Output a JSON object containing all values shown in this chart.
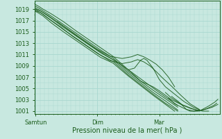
{
  "background_color": "#c8e8e0",
  "grid_color": "#a8d8d0",
  "line_color": "#1a5c1a",
  "ylim": [
    1000.5,
    1020.5
  ],
  "yticks": [
    1001,
    1003,
    1005,
    1007,
    1009,
    1011,
    1013,
    1015,
    1017,
    1019
  ],
  "xlabel": "Pression niveau de la mer( hPa )",
  "xtick_labels": [
    "Samtun",
    "Dim",
    "Mar"
  ],
  "xtick_positions": [
    0.0,
    1.0,
    2.0
  ],
  "text_color": "#1a5c1a",
  "lines": [
    {
      "x": [
        0.0,
        0.05,
        0.12,
        0.25,
        0.45,
        0.65,
        0.85,
        1.05,
        1.25,
        1.5,
        1.7,
        1.9,
        2.1,
        2.3
      ],
      "y": [
        1019.8,
        1019.5,
        1019.0,
        1018.2,
        1016.8,
        1015.2,
        1013.7,
        1012.2,
        1010.7,
        1008.3,
        1006.7,
        1005.1,
        1003.5,
        1002.0
      ]
    },
    {
      "x": [
        0.0,
        0.05,
        0.12,
        0.25,
        0.45,
        0.65,
        0.85,
        1.05,
        1.25,
        1.5,
        1.7,
        1.9,
        2.1,
        2.3
      ],
      "y": [
        1019.5,
        1019.2,
        1018.7,
        1017.8,
        1016.3,
        1014.8,
        1013.3,
        1011.8,
        1010.4,
        1008.0,
        1006.3,
        1004.7,
        1003.2,
        1001.7
      ]
    },
    {
      "x": [
        0.0,
        0.05,
        0.12,
        0.25,
        0.45,
        0.65,
        0.85,
        1.05,
        1.25,
        1.5,
        1.7,
        1.9,
        2.1,
        2.3
      ],
      "y": [
        1019.2,
        1018.9,
        1018.4,
        1017.4,
        1015.8,
        1014.3,
        1012.8,
        1011.3,
        1010.1,
        1007.7,
        1006.0,
        1004.3,
        1002.8,
        1001.2
      ]
    },
    {
      "x": [
        0.0,
        0.05,
        0.12,
        0.25,
        0.45,
        0.65,
        0.85,
        1.05,
        1.25,
        1.5,
        1.7,
        1.9,
        2.1,
        2.3
      ],
      "y": [
        1018.9,
        1018.6,
        1018.1,
        1017.0,
        1015.4,
        1013.9,
        1012.4,
        1010.9,
        1009.8,
        1007.4,
        1005.7,
        1004.0,
        1002.4,
        1001.0
      ]
    },
    {
      "x": [
        0.0,
        0.05,
        0.12,
        0.25,
        0.45,
        0.65,
        0.85,
        1.05,
        1.25,
        1.5,
        1.7,
        1.9,
        2.1,
        2.25
      ],
      "y": [
        1018.6,
        1018.3,
        1017.8,
        1016.6,
        1015.0,
        1013.5,
        1012.0,
        1010.5,
        1009.5,
        1007.2,
        1005.5,
        1003.8,
        1002.2,
        1001.0
      ]
    },
    {
      "x": [
        0.0,
        0.08,
        0.2,
        0.4,
        0.6,
        0.8,
        1.0,
        1.2,
        1.4,
        1.55,
        1.65,
        1.75,
        1.85,
        1.95,
        2.05,
        2.15,
        2.25
      ],
      "y": [
        1019.0,
        1018.7,
        1017.9,
        1016.4,
        1014.9,
        1013.4,
        1011.9,
        1010.7,
        1010.3,
        1010.6,
        1011.0,
        1010.6,
        1010.0,
        1009.3,
        1008.3,
        1007.0,
        1005.3
      ]
    },
    {
      "x": [
        0.0,
        0.08,
        0.2,
        0.4,
        0.6,
        0.8,
        1.0,
        1.2,
        1.4,
        1.55,
        1.65,
        1.75,
        1.85,
        1.95,
        2.05,
        2.2,
        2.35,
        2.5,
        2.65
      ],
      "y": [
        1018.7,
        1018.4,
        1017.4,
        1015.9,
        1014.2,
        1012.7,
        1011.2,
        1009.9,
        1009.4,
        1009.7,
        1010.1,
        1009.7,
        1009.0,
        1008.0,
        1006.9,
        1005.4,
        1003.8,
        1002.3,
        1001.3
      ]
    },
    {
      "x": [
        0.35,
        0.5,
        0.7,
        0.9,
        1.1,
        1.3,
        1.5,
        1.6,
        1.7,
        1.8,
        1.9,
        2.0,
        2.1,
        2.2,
        2.35,
        2.5,
        2.65
      ],
      "y": [
        1016.8,
        1015.6,
        1014.0,
        1012.5,
        1011.1,
        1009.8,
        1008.3,
        1007.3,
        1006.3,
        1005.8,
        1005.3,
        1004.6,
        1003.8,
        1003.0,
        1002.2,
        1001.5,
        1001.0
      ]
    },
    {
      "x": [
        1.5,
        1.6,
        1.65,
        1.7,
        1.75,
        1.8,
        1.85,
        1.9,
        1.95,
        2.0,
        2.1,
        2.25,
        2.4,
        2.55,
        2.7,
        2.8
      ],
      "y": [
        1008.3,
        1008.6,
        1009.3,
        1010.0,
        1010.3,
        1010.0,
        1009.3,
        1008.6,
        1007.6,
        1006.6,
        1005.3,
        1004.0,
        1002.7,
        1001.7,
        1001.0,
        1001.0
      ]
    },
    {
      "x": [
        2.1,
        2.2,
        2.3,
        2.38,
        2.45,
        2.52,
        2.58,
        2.64,
        2.7,
        2.76,
        2.82,
        2.88,
        2.93
      ],
      "y": [
        1004.3,
        1003.3,
        1002.6,
        1002.1,
        1001.8,
        1001.5,
        1001.3,
        1001.1,
        1001.2,
        1001.4,
        1001.7,
        1002.0,
        1002.4
      ]
    },
    {
      "x": [
        2.15,
        2.25,
        2.38,
        2.5,
        2.62,
        2.74,
        2.86,
        2.95
      ],
      "y": [
        1003.3,
        1002.3,
        1001.6,
        1001.0,
        1001.0,
        1001.3,
        1001.7,
        1002.2
      ]
    },
    {
      "x": [
        2.2,
        2.32,
        2.44,
        2.56,
        2.68,
        2.8,
        2.9,
        2.95
      ],
      "y": [
        1003.6,
        1002.6,
        1001.3,
        1001.0,
        1001.2,
        1001.9,
        1002.6,
        1003.1
      ]
    }
  ],
  "xlim": [
    -0.02,
    2.98
  ],
  "figsize": [
    3.2,
    2.0
  ],
  "dpi": 100
}
